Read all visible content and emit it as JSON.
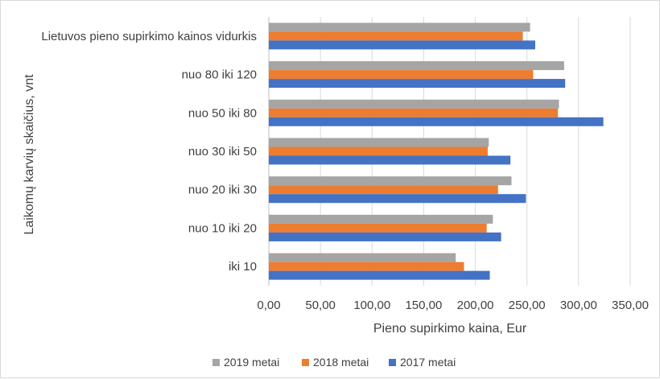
{
  "chart_data": {
    "type": "bar",
    "orientation": "horizontal",
    "categories": [
      "Lietuvos pieno supirkimo kainos vidurkis",
      "nuo 80 iki 120",
      "nuo 50 iki 80",
      "nuo 30 iki 50",
      "nuo 20 iki 30",
      "nuo 10 iki 20",
      "iki 10"
    ],
    "series": [
      {
        "name": "2019 metai",
        "color": "#a5a5a5",
        "values": [
          253,
          286,
          281,
          213,
          235,
          217,
          181
        ]
      },
      {
        "name": "2018 metai",
        "color": "#ed7d31",
        "values": [
          246,
          256,
          280,
          212,
          222,
          211,
          189
        ]
      },
      {
        "name": "2017 metai",
        "color": "#4472c4",
        "values": [
          258,
          287,
          324,
          234,
          249,
          225,
          214
        ]
      }
    ],
    "xlim": [
      0,
      350
    ],
    "x_ticks": [
      "0,00",
      "50,00",
      "100,00",
      "150,00",
      "200,00",
      "250,00",
      "300,00",
      "350,00"
    ],
    "xlabel": "Pieno supirkimo kaina, Eur",
    "ylabel": "Laikomų karvių skaičius, vnt",
    "grid": "vertical",
    "legend_position": "bottom"
  }
}
